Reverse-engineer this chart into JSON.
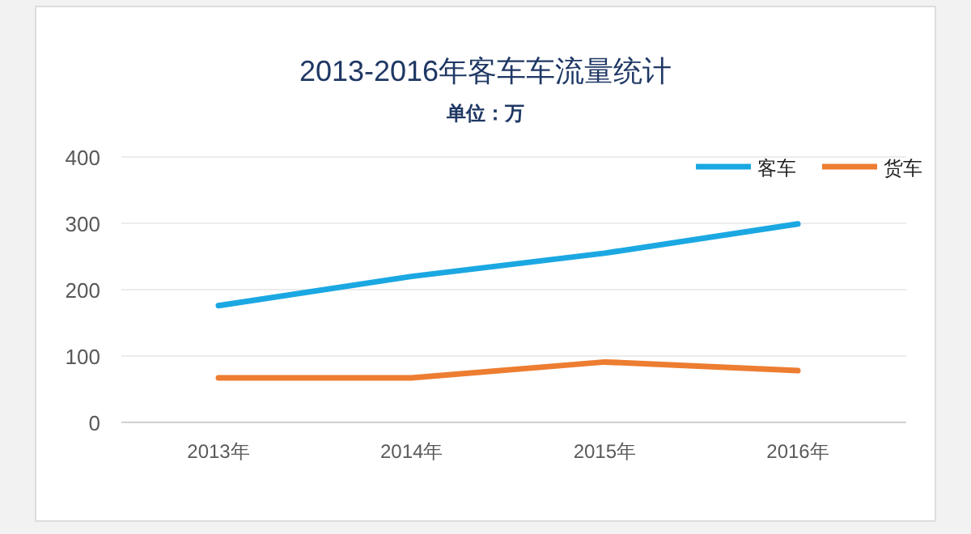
{
  "chart_data": {
    "type": "line",
    "title": "2013-2016年客车车流量统计",
    "subtitle": "单位：万",
    "categories": [
      "2013年",
      "2014年",
      "2015年",
      "2016年"
    ],
    "series": [
      {
        "name": "客车",
        "color": "#1ba8e2",
        "values": [
          176,
          220,
          255,
          299
        ]
      },
      {
        "name": "货车",
        "color": "#ed7d31",
        "values": [
          67,
          67,
          91,
          78
        ]
      }
    ],
    "ylim": [
      0,
      400
    ],
    "yticks": [
      0,
      100,
      200,
      300,
      400
    ],
    "grid": "y",
    "legend": "top right",
    "marker": "none",
    "line_style": "solid"
  }
}
